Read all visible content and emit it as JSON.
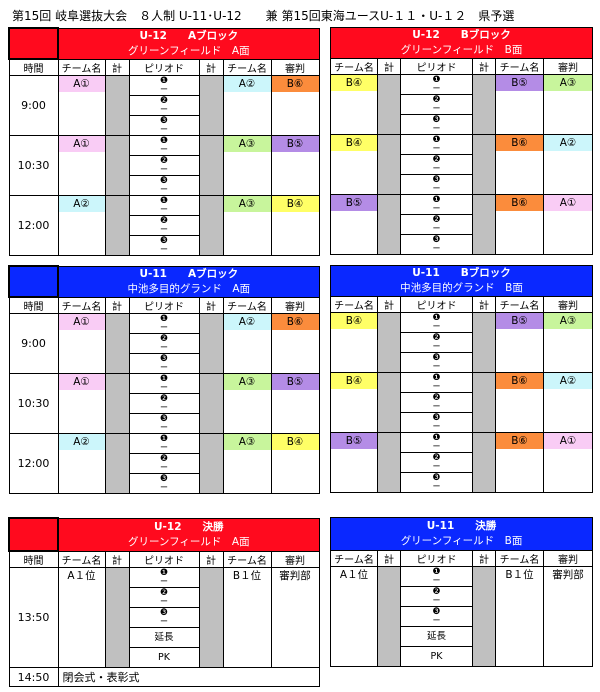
{
  "title": "第15回 岐阜選抜大会　８人制 U-11･U-12　　兼 第15回東海ユースU-１１・U-１２　県予選",
  "columns": {
    "time": "時間",
    "team": "チーム名",
    "score": "計",
    "period": "ピリオド",
    "referee": "審判"
  },
  "periods": [
    "❶",
    "❷",
    "❸"
  ],
  "period_dash": "ー",
  "extra_periods": [
    "延長",
    "PK"
  ],
  "colors": {
    "red": "#ff0a1e",
    "blue": "#0a28ff",
    "pink": "#f9ccf5",
    "cyan": "#ccf6fb",
    "orange": "#fb8c3c",
    "purple": "#b48ce6",
    "green": "#c8f59c",
    "yellow": "#ffff66",
    "gray": "#c0c0c0"
  },
  "blocks": [
    {
      "title": "U-12　　Aブロック",
      "subtitle": "グリーンフィールド　A面",
      "color": "red",
      "time_col": true,
      "matches": [
        {
          "time": "9:00",
          "team1": {
            "label": "A①",
            "color": "pink"
          },
          "team2": {
            "label": "A②",
            "color": "cyan"
          },
          "referee": {
            "label": "B⑥",
            "color": "orange"
          }
        },
        {
          "time": "10:30",
          "team1": {
            "label": "A①",
            "color": "pink"
          },
          "team2": {
            "label": "A③",
            "color": "green"
          },
          "referee": {
            "label": "B⑤",
            "color": "purple"
          }
        },
        {
          "time": "12:00",
          "team1": {
            "label": "A②",
            "color": "cyan"
          },
          "team2": {
            "label": "A③",
            "color": "green"
          },
          "referee": {
            "label": "B④",
            "color": "yellow"
          }
        }
      ]
    },
    {
      "title": "U-12　　Bブロック",
      "subtitle": "グリーンフィールド　B面",
      "color": "red",
      "time_col": false,
      "matches": [
        {
          "team1": {
            "label": "B④",
            "color": "yellow"
          },
          "team2": {
            "label": "B⑤",
            "color": "purple"
          },
          "referee": {
            "label": "A③",
            "color": "green"
          }
        },
        {
          "team1": {
            "label": "B④",
            "color": "yellow"
          },
          "team2": {
            "label": "B⑥",
            "color": "orange"
          },
          "referee": {
            "label": "A②",
            "color": "cyan"
          }
        },
        {
          "team1": {
            "label": "B⑤",
            "color": "purple"
          },
          "team2": {
            "label": "B⑥",
            "color": "orange"
          },
          "referee": {
            "label": "A①",
            "color": "pink"
          }
        }
      ]
    },
    {
      "title": "U-11　　Aブロック",
      "subtitle": "中池多目的グランド　A面",
      "color": "blue",
      "time_col": true,
      "matches": [
        {
          "time": "9:00",
          "team1": {
            "label": "A①",
            "color": "pink"
          },
          "team2": {
            "label": "A②",
            "color": "cyan"
          },
          "referee": {
            "label": "B⑥",
            "color": "orange"
          }
        },
        {
          "time": "10:30",
          "team1": {
            "label": "A①",
            "color": "pink"
          },
          "team2": {
            "label": "A③",
            "color": "green"
          },
          "referee": {
            "label": "B⑤",
            "color": "purple"
          }
        },
        {
          "time": "12:00",
          "team1": {
            "label": "A②",
            "color": "cyan"
          },
          "team2": {
            "label": "A③",
            "color": "green"
          },
          "referee": {
            "label": "B④",
            "color": "yellow"
          }
        }
      ]
    },
    {
      "title": "U-11　　Bブロック",
      "subtitle": "中池多目的グランド　B面",
      "color": "blue",
      "time_col": false,
      "matches": [
        {
          "team1": {
            "label": "B④",
            "color": "yellow"
          },
          "team2": {
            "label": "B⑤",
            "color": "purple"
          },
          "referee": {
            "label": "A③",
            "color": "green"
          }
        },
        {
          "team1": {
            "label": "B④",
            "color": "yellow"
          },
          "team2": {
            "label": "B⑥",
            "color": "orange"
          },
          "referee": {
            "label": "A②",
            "color": "cyan"
          }
        },
        {
          "team1": {
            "label": "B⑤",
            "color": "purple"
          },
          "team2": {
            "label": "B⑥",
            "color": "orange"
          },
          "referee": {
            "label": "A①",
            "color": "pink"
          }
        }
      ]
    },
    {
      "title": "U-12　　決勝",
      "subtitle": "グリーンフィールド　A面",
      "color": "red",
      "time_col": true,
      "final": true,
      "matches": [
        {
          "time": "13:50",
          "team1": {
            "label": "A１位"
          },
          "team2": {
            "label": "B１位"
          },
          "referee": {
            "label": "審判部"
          }
        }
      ],
      "closing": {
        "time": "14:50",
        "label": "閉会式・表彰式"
      }
    },
    {
      "title": "U-11　　決勝",
      "subtitle": "グリーンフィールド　B面",
      "color": "blue",
      "time_col": false,
      "final": true,
      "matches": [
        {
          "team1": {
            "label": "A１位"
          },
          "team2": {
            "label": "B１位"
          },
          "referee": {
            "label": "審判部"
          }
        }
      ]
    }
  ]
}
